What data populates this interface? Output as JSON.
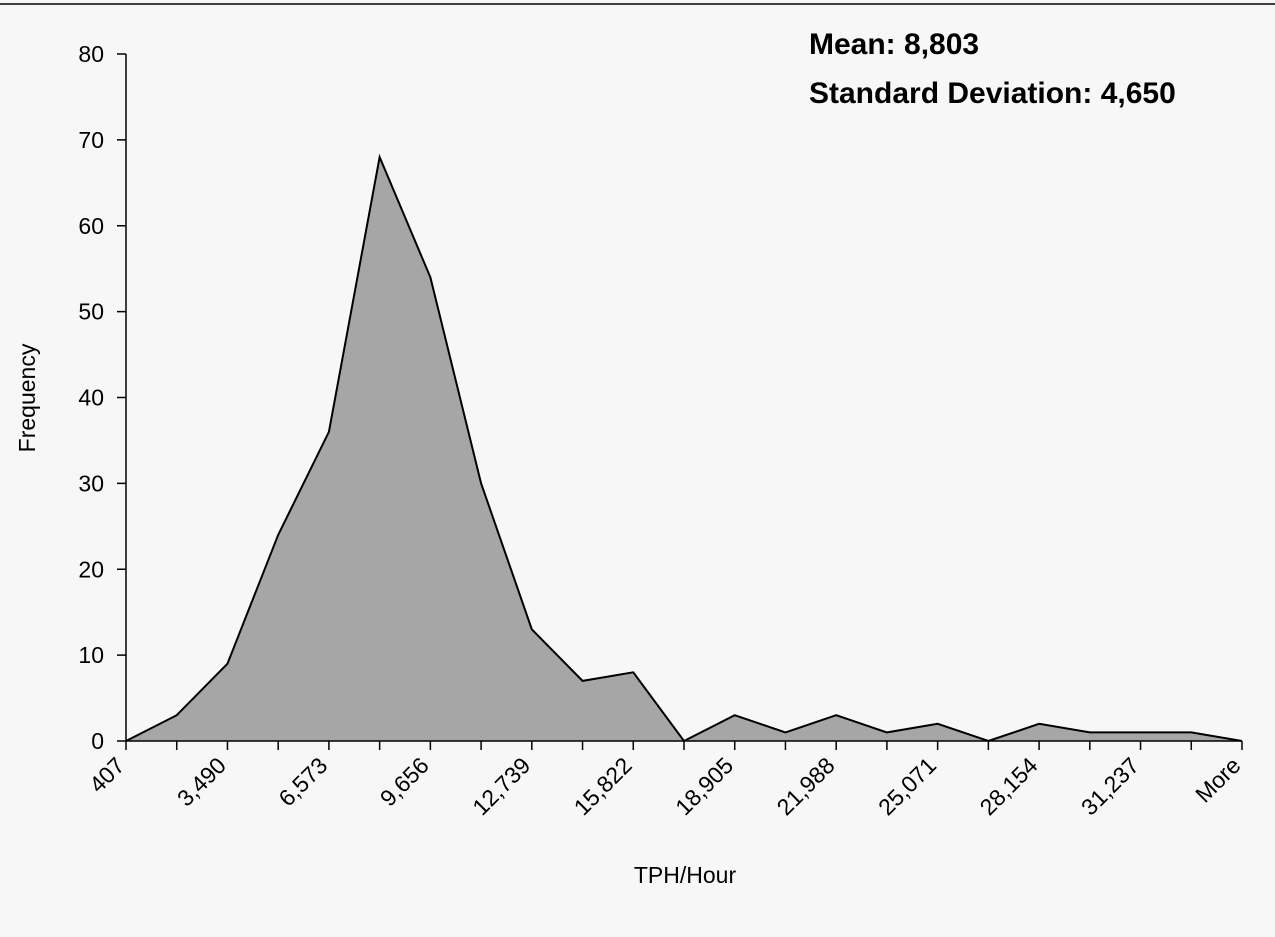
{
  "chart_data": {
    "type": "area",
    "xlabel": "TPH/Hour",
    "ylabel": "Frequency",
    "ylim": [
      0,
      80
    ],
    "yticks": [
      0,
      10,
      20,
      30,
      40,
      50,
      60,
      70,
      80
    ],
    "x_tick_labels": [
      "407",
      "3,490",
      "6,573",
      "9,656",
      "12,739",
      "15,822",
      "18,905",
      "21,988",
      "25,071",
      "28,154",
      "31,237",
      "More"
    ],
    "categories": [
      "407",
      "",
      "3,490",
      "",
      "6,573",
      "",
      "9,656",
      "",
      "12,739",
      "",
      "15,822",
      "",
      "18,905",
      "",
      "21,988",
      "",
      "25,071",
      "",
      "28,154",
      "",
      "31,237",
      "",
      "More"
    ],
    "values": [
      0,
      3,
      9,
      24,
      36,
      68,
      54,
      30,
      13,
      7,
      8,
      0,
      3,
      1,
      3,
      1,
      2,
      0,
      2,
      1,
      1,
      1,
      0
    ],
    "annotations": [
      {
        "label": "Mean: 8,803"
      },
      {
        "label": "Standard Deviation: 4,650"
      }
    ],
    "colors": {
      "area_fill": "#a6a6a6",
      "line": "#000000",
      "background": "#f7f7f7"
    },
    "grid": false,
    "legend": "none"
  }
}
